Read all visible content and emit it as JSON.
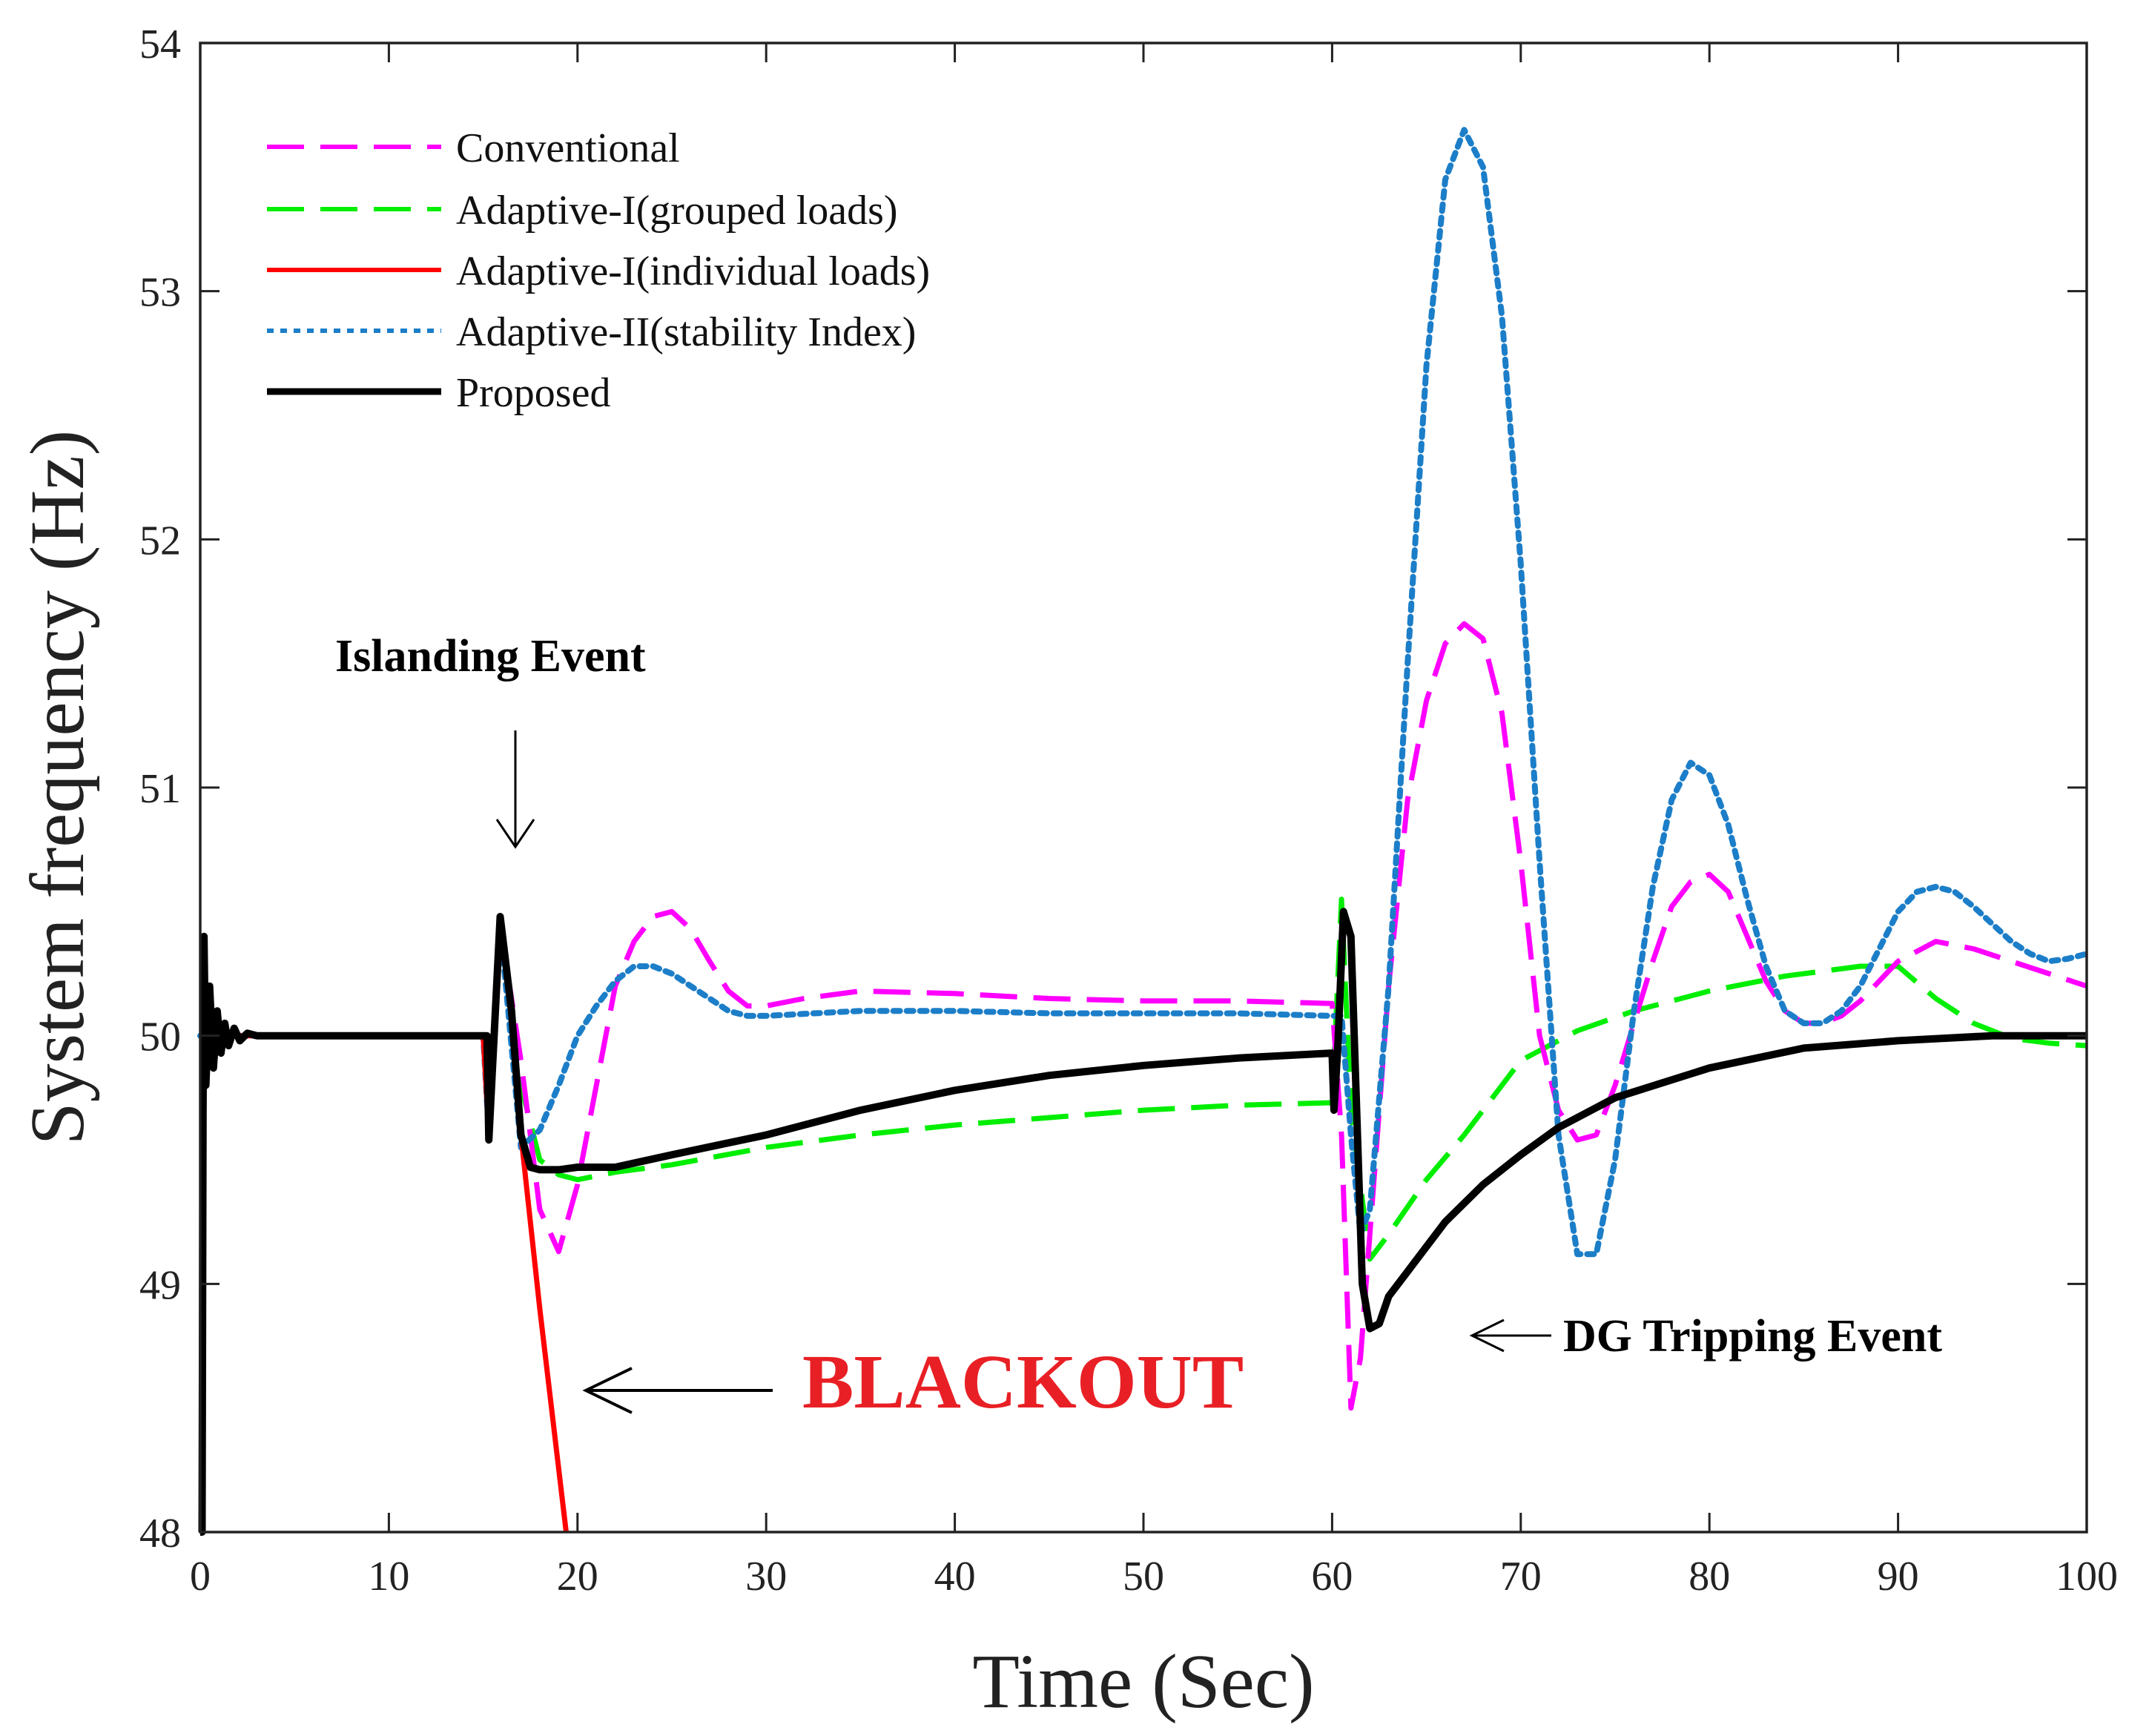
{
  "chart_data": {
    "type": "line",
    "title": "",
    "xlabel": "Time (Sec)",
    "ylabel": "System frequency (Hz)",
    "xlim": [
      0,
      100
    ],
    "ylim": [
      48,
      54
    ],
    "xticks": [
      0,
      10,
      20,
      30,
      40,
      50,
      60,
      70,
      80,
      90,
      100
    ],
    "yticks": [
      48,
      49,
      50,
      51,
      52,
      53,
      54
    ],
    "grid": false,
    "legend_position": "top-left",
    "series": [
      {
        "name": "Conventional",
        "color": "#ff00ff",
        "style": "dashed",
        "x": [
          0,
          15,
          15.3,
          15.9,
          17,
          18,
          19,
          20,
          21,
          22,
          23,
          24,
          25,
          26,
          27,
          28,
          29,
          30,
          32,
          35,
          40,
          45,
          50,
          55,
          60,
          60.5,
          61,
          61.5,
          62,
          63,
          64,
          65,
          66,
          67,
          68,
          69,
          70,
          71,
          72,
          73,
          74,
          75,
          76,
          77,
          78,
          79,
          80,
          81,
          82,
          83,
          84,
          85,
          86,
          87,
          88,
          90,
          92,
          94,
          96,
          98,
          100
        ],
        "y": [
          50,
          50,
          49.6,
          50.45,
          49.9,
          49.3,
          49.13,
          49.4,
          49.8,
          50.2,
          50.38,
          50.48,
          50.5,
          50.43,
          50.3,
          50.18,
          50.12,
          50.12,
          50.15,
          50.18,
          50.17,
          50.15,
          50.14,
          50.14,
          50.13,
          49.6,
          48.5,
          48.7,
          49.2,
          50.2,
          50.95,
          51.35,
          51.58,
          51.66,
          51.6,
          51.3,
          50.7,
          50,
          49.7,
          49.58,
          49.6,
          49.8,
          50.05,
          50.3,
          50.52,
          50.62,
          50.65,
          50.58,
          50.4,
          50.22,
          50.1,
          50.05,
          50.05,
          50.08,
          50.14,
          50.3,
          50.38,
          50.35,
          50.3,
          50.25,
          50.2
        ]
      },
      {
        "name": "Adaptive-I(grouped loads)",
        "color": "#00ee00",
        "style": "dashed",
        "x": [
          0,
          15,
          15.3,
          15.9,
          17,
          18,
          19,
          20,
          22,
          25,
          30,
          35,
          40,
          45,
          50,
          55,
          60,
          60.5,
          61,
          62,
          63,
          65,
          67,
          70,
          73,
          76,
          80,
          84,
          86,
          88,
          90,
          92,
          94,
          96,
          98,
          100
        ],
        "y": [
          50,
          50,
          49.6,
          50.45,
          49.8,
          49.5,
          49.44,
          49.42,
          49.45,
          49.48,
          49.55,
          49.6,
          49.64,
          49.67,
          49.7,
          49.72,
          49.73,
          50.55,
          49.7,
          49.1,
          49.2,
          49.42,
          49.6,
          49.9,
          50.02,
          50.1,
          50.18,
          50.24,
          50.26,
          50.28,
          50.28,
          50.15,
          50.05,
          49.99,
          49.97,
          49.96
        ]
      },
      {
        "name": "Adaptive-I(individual loads)",
        "color": "#ff0000",
        "style": "solid",
        "x": [
          0,
          15,
          15.3,
          15.9,
          16.5,
          17,
          18,
          19.4
        ],
        "y": [
          50,
          50,
          49.6,
          50.48,
          50.1,
          49.6,
          48.9,
          48
        ]
      },
      {
        "name": "Adaptive-II(stability Index)",
        "color": "#1c7ec8",
        "style": "dotted",
        "x": [
          0,
          15,
          15.3,
          15.9,
          17,
          18,
          19,
          20,
          21,
          22,
          23,
          24,
          25,
          26,
          27,
          28,
          29,
          30,
          35,
          40,
          45,
          50,
          55,
          60,
          60.5,
          61,
          61.5,
          62,
          63,
          64,
          65,
          66,
          67,
          68,
          69,
          70,
          71,
          72,
          73,
          74,
          75,
          76,
          77,
          78,
          79,
          80,
          81,
          82,
          83,
          84,
          85,
          86,
          87,
          88,
          89,
          90,
          91,
          92,
          93,
          94,
          95,
          96,
          97,
          98,
          99,
          100
        ],
        "y": [
          50,
          50,
          49.6,
          50.45,
          49.55,
          49.62,
          49.8,
          50.0,
          50.12,
          50.22,
          50.28,
          50.28,
          50.25,
          50.2,
          50.15,
          50.1,
          50.08,
          50.08,
          50.1,
          50.1,
          50.09,
          50.09,
          50.09,
          50.08,
          50.08,
          49.6,
          49.2,
          49.3,
          50.2,
          51.5,
          52.7,
          53.45,
          53.65,
          53.5,
          52.9,
          51.9,
          50.7,
          49.6,
          49.12,
          49.12,
          49.5,
          50.1,
          50.6,
          50.95,
          51.1,
          51.05,
          50.85,
          50.55,
          50.28,
          50.1,
          50.05,
          50.05,
          50.1,
          50.2,
          50.35,
          50.5,
          50.58,
          50.6,
          50.58,
          50.52,
          50.45,
          50.38,
          50.33,
          50.3,
          50.31,
          50.33
        ]
      },
      {
        "name": "Proposed",
        "color": "#000000",
        "style": "solid",
        "x": [
          0,
          0.1,
          0.15,
          0.2,
          0.3,
          0.5,
          0.7,
          0.9,
          1.1,
          1.3,
          1.5,
          1.8,
          2.1,
          2.5,
          3,
          4,
          5,
          15,
          15.2,
          15.3,
          15.9,
          16.5,
          17,
          17.5,
          18,
          19,
          20,
          22,
          25,
          30,
          35,
          40,
          45,
          50,
          55,
          60,
          60.1,
          60.3,
          60.6,
          61,
          61.3,
          61.6,
          62,
          62.5,
          63,
          64,
          65,
          66,
          68,
          70,
          72,
          75,
          80,
          85,
          90,
          95,
          100
        ],
        "y": [
          48,
          48,
          49.7,
          50.4,
          49.8,
          50.2,
          49.87,
          50.1,
          49.93,
          50.05,
          49.96,
          50.03,
          49.98,
          50.01,
          50,
          50,
          50,
          50,
          50,
          49.58,
          50.48,
          50.1,
          49.6,
          49.47,
          49.46,
          49.46,
          49.47,
          49.47,
          49.52,
          49.6,
          49.7,
          49.78,
          49.84,
          49.88,
          49.91,
          49.93,
          49.7,
          49.95,
          50.5,
          50.4,
          49.7,
          49.0,
          48.82,
          48.84,
          48.95,
          49.05,
          49.15,
          49.25,
          49.4,
          49.52,
          49.63,
          49.75,
          49.87,
          49.95,
          49.98,
          50.0,
          50.0
        ]
      }
    ],
    "annotations": [
      {
        "text": "Islanding Event",
        "x": 17,
        "y": 51.55
      },
      {
        "text": "BLACKOUT",
        "x": 32,
        "y": 48.6,
        "color": "#e82025"
      },
      {
        "text": "DG Tripping Event",
        "x": 72,
        "y": 48.88
      }
    ]
  }
}
